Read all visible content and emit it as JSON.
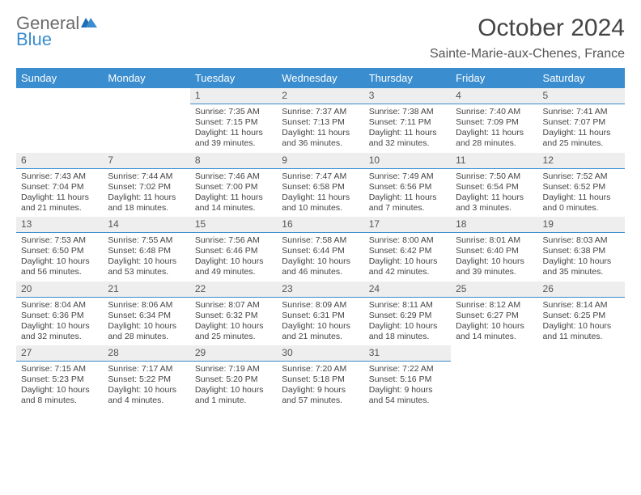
{
  "logo": {
    "general": "General",
    "blue": "Blue"
  },
  "title": "October 2024",
  "location": "Sainte-Marie-aux-Chenes, France",
  "day_headers": [
    "Sunday",
    "Monday",
    "Tuesday",
    "Wednesday",
    "Thursday",
    "Friday",
    "Saturday"
  ],
  "header_bg": "#3a8dce",
  "header_fg": "#ffffff",
  "daynum_bg": "#eeeeee",
  "grid_line": "#3a8dce",
  "weeks": [
    [
      {
        "n": "",
        "sr": "",
        "ss": "",
        "dl": ""
      },
      {
        "n": "",
        "sr": "",
        "ss": "",
        "dl": ""
      },
      {
        "n": "1",
        "sr": "Sunrise: 7:35 AM",
        "ss": "Sunset: 7:15 PM",
        "dl": "Daylight: 11 hours and 39 minutes."
      },
      {
        "n": "2",
        "sr": "Sunrise: 7:37 AM",
        "ss": "Sunset: 7:13 PM",
        "dl": "Daylight: 11 hours and 36 minutes."
      },
      {
        "n": "3",
        "sr": "Sunrise: 7:38 AM",
        "ss": "Sunset: 7:11 PM",
        "dl": "Daylight: 11 hours and 32 minutes."
      },
      {
        "n": "4",
        "sr": "Sunrise: 7:40 AM",
        "ss": "Sunset: 7:09 PM",
        "dl": "Daylight: 11 hours and 28 minutes."
      },
      {
        "n": "5",
        "sr": "Sunrise: 7:41 AM",
        "ss": "Sunset: 7:07 PM",
        "dl": "Daylight: 11 hours and 25 minutes."
      }
    ],
    [
      {
        "n": "6",
        "sr": "Sunrise: 7:43 AM",
        "ss": "Sunset: 7:04 PM",
        "dl": "Daylight: 11 hours and 21 minutes."
      },
      {
        "n": "7",
        "sr": "Sunrise: 7:44 AM",
        "ss": "Sunset: 7:02 PM",
        "dl": "Daylight: 11 hours and 18 minutes."
      },
      {
        "n": "8",
        "sr": "Sunrise: 7:46 AM",
        "ss": "Sunset: 7:00 PM",
        "dl": "Daylight: 11 hours and 14 minutes."
      },
      {
        "n": "9",
        "sr": "Sunrise: 7:47 AM",
        "ss": "Sunset: 6:58 PM",
        "dl": "Daylight: 11 hours and 10 minutes."
      },
      {
        "n": "10",
        "sr": "Sunrise: 7:49 AM",
        "ss": "Sunset: 6:56 PM",
        "dl": "Daylight: 11 hours and 7 minutes."
      },
      {
        "n": "11",
        "sr": "Sunrise: 7:50 AM",
        "ss": "Sunset: 6:54 PM",
        "dl": "Daylight: 11 hours and 3 minutes."
      },
      {
        "n": "12",
        "sr": "Sunrise: 7:52 AM",
        "ss": "Sunset: 6:52 PM",
        "dl": "Daylight: 11 hours and 0 minutes."
      }
    ],
    [
      {
        "n": "13",
        "sr": "Sunrise: 7:53 AM",
        "ss": "Sunset: 6:50 PM",
        "dl": "Daylight: 10 hours and 56 minutes."
      },
      {
        "n": "14",
        "sr": "Sunrise: 7:55 AM",
        "ss": "Sunset: 6:48 PM",
        "dl": "Daylight: 10 hours and 53 minutes."
      },
      {
        "n": "15",
        "sr": "Sunrise: 7:56 AM",
        "ss": "Sunset: 6:46 PM",
        "dl": "Daylight: 10 hours and 49 minutes."
      },
      {
        "n": "16",
        "sr": "Sunrise: 7:58 AM",
        "ss": "Sunset: 6:44 PM",
        "dl": "Daylight: 10 hours and 46 minutes."
      },
      {
        "n": "17",
        "sr": "Sunrise: 8:00 AM",
        "ss": "Sunset: 6:42 PM",
        "dl": "Daylight: 10 hours and 42 minutes."
      },
      {
        "n": "18",
        "sr": "Sunrise: 8:01 AM",
        "ss": "Sunset: 6:40 PM",
        "dl": "Daylight: 10 hours and 39 minutes."
      },
      {
        "n": "19",
        "sr": "Sunrise: 8:03 AM",
        "ss": "Sunset: 6:38 PM",
        "dl": "Daylight: 10 hours and 35 minutes."
      }
    ],
    [
      {
        "n": "20",
        "sr": "Sunrise: 8:04 AM",
        "ss": "Sunset: 6:36 PM",
        "dl": "Daylight: 10 hours and 32 minutes."
      },
      {
        "n": "21",
        "sr": "Sunrise: 8:06 AM",
        "ss": "Sunset: 6:34 PM",
        "dl": "Daylight: 10 hours and 28 minutes."
      },
      {
        "n": "22",
        "sr": "Sunrise: 8:07 AM",
        "ss": "Sunset: 6:32 PM",
        "dl": "Daylight: 10 hours and 25 minutes."
      },
      {
        "n": "23",
        "sr": "Sunrise: 8:09 AM",
        "ss": "Sunset: 6:31 PM",
        "dl": "Daylight: 10 hours and 21 minutes."
      },
      {
        "n": "24",
        "sr": "Sunrise: 8:11 AM",
        "ss": "Sunset: 6:29 PM",
        "dl": "Daylight: 10 hours and 18 minutes."
      },
      {
        "n": "25",
        "sr": "Sunrise: 8:12 AM",
        "ss": "Sunset: 6:27 PM",
        "dl": "Daylight: 10 hours and 14 minutes."
      },
      {
        "n": "26",
        "sr": "Sunrise: 8:14 AM",
        "ss": "Sunset: 6:25 PM",
        "dl": "Daylight: 10 hours and 11 minutes."
      }
    ],
    [
      {
        "n": "27",
        "sr": "Sunrise: 7:15 AM",
        "ss": "Sunset: 5:23 PM",
        "dl": "Daylight: 10 hours and 8 minutes."
      },
      {
        "n": "28",
        "sr": "Sunrise: 7:17 AM",
        "ss": "Sunset: 5:22 PM",
        "dl": "Daylight: 10 hours and 4 minutes."
      },
      {
        "n": "29",
        "sr": "Sunrise: 7:19 AM",
        "ss": "Sunset: 5:20 PM",
        "dl": "Daylight: 10 hours and 1 minute."
      },
      {
        "n": "30",
        "sr": "Sunrise: 7:20 AM",
        "ss": "Sunset: 5:18 PM",
        "dl": "Daylight: 9 hours and 57 minutes."
      },
      {
        "n": "31",
        "sr": "Sunrise: 7:22 AM",
        "ss": "Sunset: 5:16 PM",
        "dl": "Daylight: 9 hours and 54 minutes."
      },
      {
        "n": "",
        "sr": "",
        "ss": "",
        "dl": ""
      },
      {
        "n": "",
        "sr": "",
        "ss": "",
        "dl": ""
      }
    ]
  ]
}
